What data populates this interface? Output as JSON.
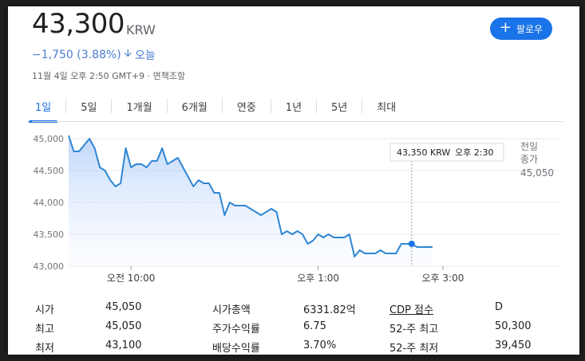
{
  "header": {
    "price": "43,300",
    "currency": "KRW",
    "follow_label": "팔로우",
    "change": "−1,750 (3.88%)",
    "change_period": "오늘",
    "timestamp": "11월 4일 오후 2:50 GMT+9 · 면책조항"
  },
  "tabs": [
    "1일",
    "5일",
    "1개월",
    "6개월",
    "연중",
    "1년",
    "5년",
    "최대"
  ],
  "active_tab": "1일",
  "tooltip": {
    "price": "43,350 KRW",
    "time": "오후 2:30"
  },
  "prev_close": {
    "label_line1": "전일",
    "label_line2": "종가",
    "value": "45,050"
  },
  "stats": {
    "col1": [
      {
        "label": "시가",
        "value": "45,050"
      },
      {
        "label": "최고",
        "value": "45,050"
      },
      {
        "label": "최저",
        "value": "43,100"
      }
    ],
    "col2": [
      {
        "label": "시가총액",
        "value": "6331.82억"
      },
      {
        "label": "주가수익률",
        "value": "6.75"
      },
      {
        "label": "배당수익률",
        "value": "3.70%"
      }
    ],
    "col3": [
      {
        "label": "CDP 점수",
        "value": "D"
      },
      {
        "label": "52-주 최고",
        "value": "50,300"
      },
      {
        "label": "52-주 최저",
        "value": "39,450"
      }
    ]
  },
  "colors": {
    "accent": "#1a73e8",
    "line": "#2f86d4",
    "negative": "#4c7ecf"
  },
  "chart_data": {
    "type": "line",
    "x_ticks": [
      "오전 10:00",
      "오후 1:00",
      "오후 3:00"
    ],
    "y_ticks": [
      "45,000",
      "44,500",
      "44,000",
      "43,500",
      "43,000"
    ],
    "ylim": [
      43000,
      45000
    ],
    "xlim": [
      "09:00",
      "15:30"
    ],
    "prev_close": 45050,
    "series": [
      {
        "x": [
          "09:00",
          "09:05",
          "09:10",
          "09:15",
          "09:20",
          "09:25",
          "09:30",
          "09:35",
          "09:40",
          "09:45",
          "09:50",
          "09:55",
          "10:00",
          "10:05",
          "10:10",
          "10:15",
          "10:20",
          "10:25",
          "10:30",
          "10:35",
          "10:40",
          "10:45",
          "10:50",
          "10:55",
          "11:00",
          "11:05",
          "11:10",
          "11:15",
          "11:20",
          "11:25",
          "11:30",
          "11:35",
          "11:40",
          "11:45",
          "11:50",
          "11:55",
          "12:00",
          "12:05",
          "12:10",
          "12:15",
          "12:20",
          "12:25",
          "12:30",
          "12:35",
          "12:40",
          "12:45",
          "12:50",
          "12:55",
          "13:00",
          "13:05",
          "13:10",
          "13:15",
          "13:20",
          "13:25",
          "13:30",
          "13:35",
          "13:40",
          "13:45",
          "13:50",
          "13:55",
          "14:00",
          "14:05",
          "14:10",
          "14:15",
          "14:20",
          "14:25",
          "14:30",
          "14:35",
          "14:40",
          "14:45",
          "14:50"
        ],
        "values": [
          45050,
          44800,
          44800,
          44900,
          45000,
          44850,
          44550,
          44500,
          44350,
          44250,
          44300,
          44850,
          44550,
          44600,
          44600,
          44550,
          44650,
          44650,
          44850,
          44600,
          44650,
          44700,
          44550,
          44400,
          44250,
          44350,
          44300,
          44300,
          44150,
          44150,
          43800,
          44000,
          43950,
          43950,
          43950,
          43900,
          43850,
          43800,
          43850,
          43900,
          43850,
          43500,
          43550,
          43500,
          43550,
          43500,
          43350,
          43400,
          43500,
          43450,
          43500,
          43450,
          43450,
          43450,
          43500,
          43150,
          43250,
          43200,
          43200,
          43200,
          43250,
          43200,
          43200,
          43200,
          43350,
          43350,
          43350,
          43300,
          43300,
          43300,
          43300
        ]
      }
    ]
  }
}
